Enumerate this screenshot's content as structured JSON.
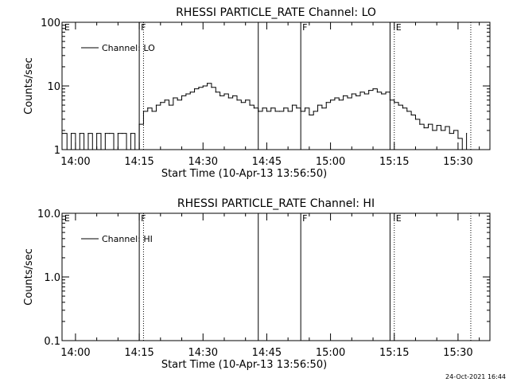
{
  "footer": {
    "timestamp": "24-Oct-2021 16:44"
  },
  "chart_data": [
    {
      "type": "line",
      "title": "RHESSI PARTICLE_RATE Channel: LO",
      "xlabel": "Start Time (10-Apr-13 13:56:50)",
      "ylabel": "Counts/sec",
      "yscale": "log",
      "ylim": [
        1,
        100
      ],
      "xlim": [
        "13:56:50",
        "15:37:30"
      ],
      "x_ticks": [
        "14:00",
        "14:15",
        "14:30",
        "14:45",
        "15:00",
        "15:15",
        "15:30"
      ],
      "y_ticks": [
        "1",
        "10",
        "100"
      ],
      "legend": {
        "label": "Channel: LO",
        "position": "top-left"
      },
      "markers": [
        {
          "time": "13:57",
          "letter": "E"
        },
        {
          "time": "14:15",
          "letter": "F"
        },
        {
          "time": "14:53",
          "letter": "F"
        },
        {
          "time": "15:15",
          "letter": "E"
        }
      ],
      "solid_lines": [
        "14:15",
        "14:43",
        "14:53",
        "15:14"
      ],
      "dotted_lines": [
        "14:16",
        "15:15",
        "15:33"
      ],
      "series": [
        {
          "name": "Channel: LO",
          "x": [
            "13:57",
            "13:58",
            "13:59",
            "14:00",
            "14:01",
            "14:02",
            "14:03",
            "14:04",
            "14:05",
            "14:06",
            "14:07",
            "14:08",
            "14:09",
            "14:10",
            "14:11",
            "14:12",
            "14:13",
            "14:14",
            "14:15",
            "14:16",
            "14:17",
            "14:18",
            "14:19",
            "14:20",
            "14:21",
            "14:22",
            "14:23",
            "14:24",
            "14:25",
            "14:26",
            "14:27",
            "14:28",
            "14:29",
            "14:30",
            "14:31",
            "14:32",
            "14:33",
            "14:34",
            "14:35",
            "14:36",
            "14:37",
            "14:38",
            "14:39",
            "14:40",
            "14:41",
            "14:42",
            "14:43",
            "14:44",
            "14:45",
            "14:46",
            "14:47",
            "14:48",
            "14:49",
            "14:50",
            "14:51",
            "14:52",
            "14:53",
            "14:54",
            "14:55",
            "14:56",
            "14:57",
            "14:58",
            "14:59",
            "15:00",
            "15:01",
            "15:02",
            "15:03",
            "15:04",
            "15:05",
            "15:06",
            "15:07",
            "15:08",
            "15:09",
            "15:10",
            "15:11",
            "15:12",
            "15:13",
            "15:14",
            "15:15",
            "15:16",
            "15:17",
            "15:18",
            "15:19",
            "15:20",
            "15:21",
            "15:22",
            "15:23",
            "15:24",
            "15:25",
            "15:26",
            "15:27",
            "15:28",
            "15:29",
            "15:30",
            "15:31",
            "15:32"
          ],
          "values": [
            1.8,
            1,
            1.8,
            1,
            1.8,
            1,
            1.8,
            1,
            1.8,
            1,
            1.8,
            1.8,
            1,
            1.8,
            1.8,
            1,
            1.8,
            1,
            2.5,
            4,
            4.5,
            4,
            5,
            5.5,
            6,
            5,
            6.5,
            6,
            7,
            7.5,
            8,
            9,
            9.5,
            10,
            11,
            9.5,
            8,
            7,
            7.5,
            6.5,
            7,
            6,
            5.5,
            6,
            5,
            4.5,
            4,
            4.5,
            4,
            4.5,
            4,
            4,
            4.5,
            4,
            5,
            4.5,
            4,
            4.5,
            3.5,
            4,
            5,
            4.5,
            5.5,
            6,
            6.5,
            6,
            7,
            6.5,
            7.5,
            7,
            8,
            7.5,
            8.5,
            9,
            8,
            7.5,
            8,
            6,
            5.5,
            5,
            4.5,
            4,
            3.5,
            3,
            2.5,
            2.2,
            2.5,
            2,
            2.4,
            2,
            2.3,
            1.8,
            2,
            1.5,
            1,
            1.8
          ]
        }
      ]
    },
    {
      "type": "line",
      "title": "RHESSI PARTICLE_RATE Channel: HI",
      "xlabel": "Start Time (10-Apr-13 13:56:50)",
      "ylabel": "Counts/sec",
      "yscale": "log",
      "ylim": [
        0.1,
        10
      ],
      "xlim": [
        "13:56:50",
        "15:37:30"
      ],
      "x_ticks": [
        "14:00",
        "14:15",
        "14:30",
        "14:45",
        "15:00",
        "15:15",
        "15:30"
      ],
      "y_ticks": [
        "0.1",
        "1.0",
        "10.0"
      ],
      "legend": {
        "label": "Channel: HI",
        "position": "top-left"
      },
      "markers": [
        {
          "time": "13:57",
          "letter": "E"
        },
        {
          "time": "14:15",
          "letter": "F"
        },
        {
          "time": "14:53",
          "letter": "F"
        },
        {
          "time": "15:15",
          "letter": "E"
        }
      ],
      "solid_lines": [
        "14:15",
        "14:43",
        "14:53",
        "15:14"
      ],
      "dotted_lines": [
        "14:16",
        "15:15",
        "15:33"
      ],
      "series": [
        {
          "name": "Channel: HI",
          "x": [],
          "values": []
        }
      ]
    }
  ]
}
